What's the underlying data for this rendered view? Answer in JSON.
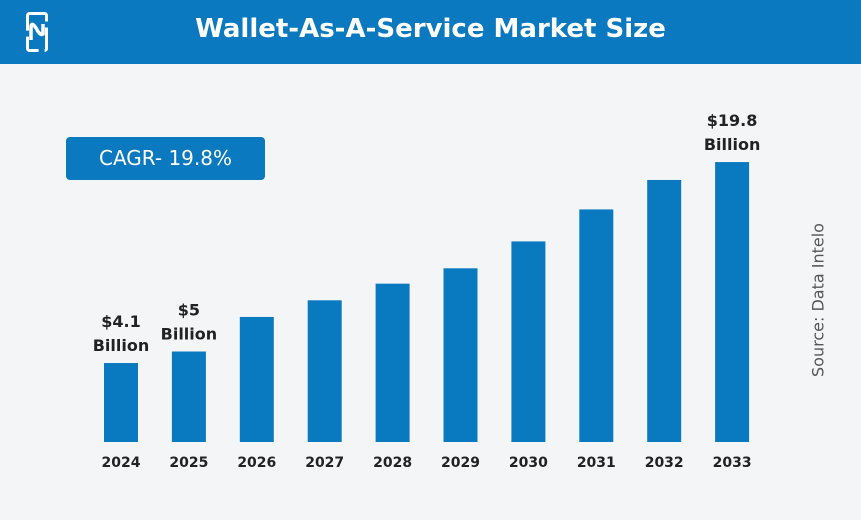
{
  "header": {
    "title": "Wallet-As-A-Service Market Size",
    "logo": "N"
  },
  "cagr_badge": "CAGR- 19.8%",
  "source": "Source: Data Intelo",
  "colors": {
    "bar": "#0a7ac0",
    "header": "#0a79bf"
  },
  "chart_data": {
    "type": "bar",
    "title": "Wallet-As-A-Service Market Size",
    "categories": [
      "2024",
      "2025",
      "2026",
      "2027",
      "2028",
      "2029",
      "2030",
      "2031",
      "2032",
      "2033"
    ],
    "values": [
      4.1,
      5,
      7.7,
      9.0,
      10.3,
      11.5,
      13.6,
      16.1,
      18.4,
      19.8
    ],
    "unit": "Billion USD",
    "data_labels": [
      {
        "category": "2024",
        "line1": "$4.1",
        "line2": "Billion"
      },
      {
        "category": "2025",
        "line1": "$5",
        "line2": "Billion"
      },
      {
        "category": "2033",
        "line1": "$19.8",
        "line2": "Billion"
      }
    ],
    "grid": false
  }
}
